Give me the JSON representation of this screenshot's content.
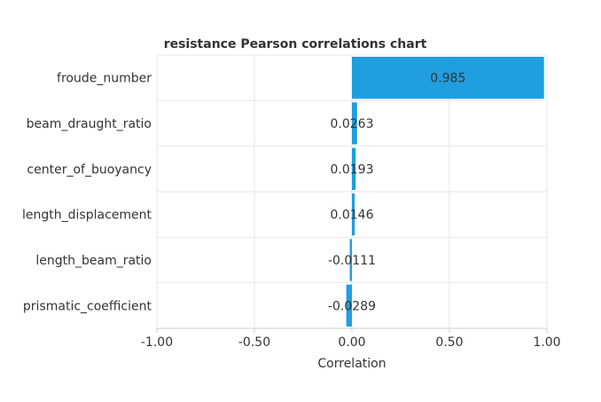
{
  "chart_data": {
    "type": "bar",
    "orientation": "horizontal",
    "title": "resistance Pearson correlations chart",
    "xlabel": "Correlation",
    "ylabel": "",
    "xlim": [
      -1.0,
      1.0
    ],
    "xticks": [
      -1.0,
      -0.5,
      0.0,
      0.5,
      1.0
    ],
    "xtick_labels": [
      "-1.00",
      "-0.50",
      "0.00",
      "0.50",
      "1.00"
    ],
    "categories": [
      "froude_number",
      "beam_draught_ratio",
      "center_of_buoyancy",
      "length_displacement",
      "length_beam_ratio",
      "prismatic_coefficient"
    ],
    "values": [
      0.985,
      0.0263,
      0.0193,
      0.0146,
      -0.0111,
      -0.0289
    ],
    "value_labels": [
      "0.985",
      "0.0263",
      "0.0193",
      "0.0146",
      "-0.0111",
      "-0.0289"
    ],
    "bar_color": "#1f9ee0",
    "grid": true,
    "legend": false
  }
}
